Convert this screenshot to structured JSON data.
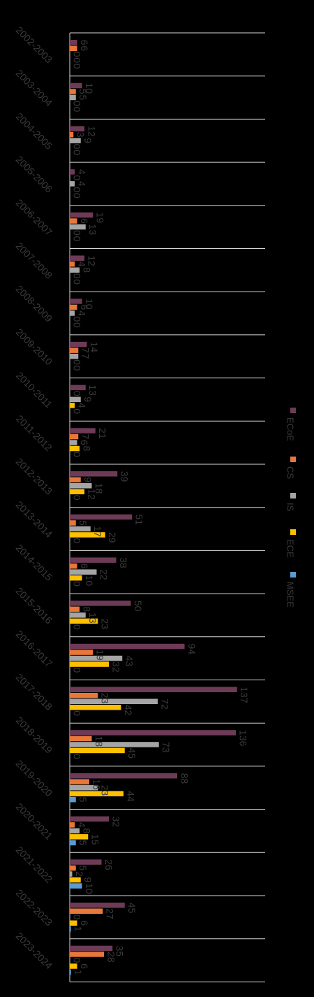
{
  "chart_data": {
    "type": "bar",
    "orientation": "horizontal",
    "title": "",
    "xlabel": "",
    "ylabel": "",
    "xlim": [
      0,
      150
    ],
    "grid": true,
    "legend_position": "right",
    "categories": [
      "2002-2003",
      "2003-2004",
      "2004-2005",
      "2005-2006",
      "2006-2007",
      "2007-2008",
      "2008-2009",
      "2009-2010",
      "2010-2011",
      "2011-2012",
      "2012-2013",
      "2013-2014",
      "2014-2015",
      "2015-2016",
      "2016-2017",
      "2017-2018",
      "2018-2019",
      "2019-2020",
      "2020-2021",
      "2021-2022",
      "2022-2023",
      "2023-2024"
    ],
    "series": [
      {
        "name": "ECoE",
        "color": "#6e3b57",
        "values": [
          6,
          10,
          12,
          4,
          19,
          12,
          10,
          14,
          13,
          21,
          39,
          51,
          38,
          50,
          94,
          137,
          136,
          88,
          32,
          26,
          45,
          35
        ]
      },
      {
        "name": "CS",
        "color": "#e8773a",
        "values": [
          6,
          5,
          3,
          0,
          6,
          4,
          6,
          7,
          0,
          7,
          9,
          5,
          6,
          8,
          19,
          23,
          18,
          16,
          4,
          5,
          27,
          28
        ]
      },
      {
        "name": "IS",
        "color": "#a5a5a5",
        "values": [
          0,
          5,
          9,
          4,
          13,
          8,
          4,
          7,
          9,
          6,
          18,
          17,
          22,
          13,
          43,
          72,
          73,
          23,
          8,
          2,
          0,
          0
        ]
      },
      {
        "name": "ECE",
        "color": "#ffc000",
        "values": [
          0,
          0,
          0,
          0,
          0,
          0,
          0,
          0,
          4,
          8,
          12,
          29,
          10,
          23,
          32,
          42,
          45,
          44,
          15,
          9,
          6,
          6
        ]
      },
      {
        "name": "MSEE",
        "color": "#5b9bd5",
        "values": [
          0,
          0,
          0,
          0,
          0,
          0,
          0,
          0,
          0,
          0,
          0,
          0,
          0,
          0,
          0,
          0,
          0,
          5,
          5,
          10,
          1,
          1
        ]
      }
    ]
  }
}
